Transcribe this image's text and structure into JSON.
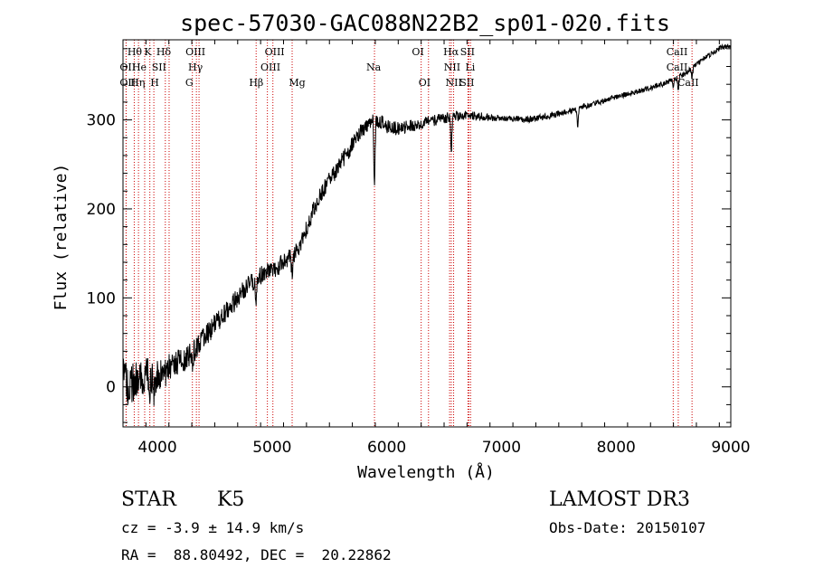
{
  "chart_data": {
    "type": "line",
    "title": "spec-57030-GAC088N22B2_sp01-020.fits",
    "xlabel": "Wavelength (Å)",
    "ylabel": "Flux (relative)",
    "xlim": [
      3700,
      9000
    ],
    "ylim": [
      -45,
      390
    ],
    "x_ticks": [
      4000,
      5000,
      6000,
      7000,
      8000,
      9000
    ],
    "y_ticks": [
      0,
      100,
      200,
      300
    ],
    "grid": false,
    "line_color": "#000000",
    "marker_color": "#cc0000",
    "series": [
      {
        "name": "flux",
        "anchors": [
          [
            3700,
            15
          ],
          [
            3750,
            0
          ],
          [
            3800,
            5
          ],
          [
            3850,
            10
          ],
          [
            3900,
            15
          ],
          [
            3950,
            10
          ],
          [
            4000,
            12
          ],
          [
            4050,
            15
          ],
          [
            4100,
            20
          ],
          [
            4150,
            25
          ],
          [
            4200,
            30
          ],
          [
            4250,
            35
          ],
          [
            4300,
            38
          ],
          [
            4350,
            45
          ],
          [
            4400,
            55
          ],
          [
            4450,
            62
          ],
          [
            4500,
            70
          ],
          [
            4550,
            78
          ],
          [
            4600,
            85
          ],
          [
            4650,
            92
          ],
          [
            4700,
            100
          ],
          [
            4750,
            108
          ],
          [
            4800,
            115
          ],
          [
            4850,
            118
          ],
          [
            4900,
            125
          ],
          [
            4950,
            128
          ],
          [
            5000,
            130
          ],
          [
            5050,
            135
          ],
          [
            5100,
            140
          ],
          [
            5150,
            145
          ],
          [
            5200,
            150
          ],
          [
            5250,
            160
          ],
          [
            5300,
            178
          ],
          [
            5350,
            195
          ],
          [
            5400,
            210
          ],
          [
            5450,
            222
          ],
          [
            5500,
            232
          ],
          [
            5550,
            242
          ],
          [
            5600,
            252
          ],
          [
            5650,
            262
          ],
          [
            5700,
            272
          ],
          [
            5750,
            283
          ],
          [
            5800,
            290
          ],
          [
            5850,
            296
          ],
          [
            5900,
            300
          ],
          [
            5950,
            298
          ],
          [
            6000,
            292
          ],
          [
            6100,
            290
          ],
          [
            6200,
            293
          ],
          [
            6300,
            296
          ],
          [
            6400,
            299
          ],
          [
            6500,
            302
          ],
          [
            6600,
            304
          ],
          [
            6700,
            305
          ],
          [
            6800,
            304
          ],
          [
            7000,
            302
          ],
          [
            7200,
            300
          ],
          [
            7400,
            304
          ],
          [
            7600,
            310
          ],
          [
            7800,
            318
          ],
          [
            8000,
            326
          ],
          [
            8200,
            332
          ],
          [
            8400,
            340
          ],
          [
            8500,
            345
          ],
          [
            8600,
            352
          ],
          [
            8700,
            362
          ],
          [
            8800,
            372
          ],
          [
            8900,
            380
          ],
          [
            9000,
            385
          ]
        ],
        "dips": [
          [
            3933,
            -25
          ],
          [
            3968,
            -25
          ],
          [
            4226,
            -20
          ],
          [
            4305,
            -15
          ],
          [
            4861,
            -20
          ],
          [
            5175,
            -25
          ],
          [
            5893,
            -80
          ],
          [
            6563,
            -40
          ],
          [
            7665,
            -20
          ],
          [
            8498,
            -10
          ],
          [
            8542,
            -15
          ],
          [
            8662,
            -12
          ]
        ],
        "noise_amplitude": [
          [
            3700,
            25
          ],
          [
            4000,
            18
          ],
          [
            4500,
            12
          ],
          [
            5000,
            10
          ],
          [
            5500,
            10
          ],
          [
            6000,
            8
          ],
          [
            7000,
            4
          ],
          [
            8000,
            3
          ],
          [
            9000,
            3
          ]
        ]
      }
    ],
    "lines": [
      {
        "label": "Hθ",
        "wave": 3798,
        "row": 0,
        "x": 3802
      },
      {
        "label": "OII",
        "wave": 3727,
        "row": 1,
        "x": 3741
      },
      {
        "label": "OII",
        "wave": 3727,
        "row": 2,
        "x": 3741
      },
      {
        "label": "Hη",
        "wave": 3835,
        "row": 2,
        "x": 3828
      },
      {
        "label": "K",
        "wave": 3934,
        "row": 0,
        "x": 3917
      },
      {
        "label": "H",
        "wave": 3969,
        "row": 2,
        "x": 3976
      },
      {
        "label": "He",
        "wave": 3889,
        "row": 1,
        "x": 3842
      },
      {
        "label": "SII",
        "wave": 4069,
        "row": 1,
        "x": 4014
      },
      {
        "label": "Hδ",
        "wave": 4102,
        "row": 0,
        "x": 4055
      },
      {
        "label": "OIII",
        "wave": 4363,
        "row": 0,
        "x": 4332
      },
      {
        "label": "Hγ",
        "wave": 4340,
        "row": 1,
        "x": 4332
      },
      {
        "label": "G",
        "wave": 4305,
        "row": 2,
        "x": 4278
      },
      {
        "label": "Hβ",
        "wave": 4861,
        "row": 2,
        "x": 4862
      },
      {
        "label": "OIII",
        "wave": 4959,
        "row": 0,
        "x": 5022
      },
      {
        "label": "OIII",
        "wave": 5007,
        "row": 1,
        "x": 4986
      },
      {
        "label": "Mg",
        "wave": 5175,
        "row": 2,
        "x": 5218
      },
      {
        "label": "Na",
        "wave": 5893,
        "row": 1,
        "x": 5885
      },
      {
        "label": "OI",
        "wave": 6300,
        "row": 0,
        "x": 6272
      },
      {
        "label": "OI",
        "wave": 6364,
        "row": 2,
        "x": 6330
      },
      {
        "label": "Hα",
        "wave": 6563,
        "row": 0,
        "x": 6560
      },
      {
        "label": "NII",
        "wave": 6548,
        "row": 1,
        "x": 6570
      },
      {
        "label": "NII",
        "wave": 6583,
        "row": 2,
        "x": 6584
      },
      {
        "label": "SII",
        "wave": 6716,
        "row": 0,
        "x": 6704
      },
      {
        "label": "Li",
        "wave": 6708,
        "row": 1,
        "x": 6728
      },
      {
        "label": "SII",
        "wave": 6731,
        "row": 2,
        "x": 6700
      },
      {
        "label": "CaII",
        "wave": 8498,
        "row": 0,
        "x": 8531
      },
      {
        "label": "CaII",
        "wave": 8542,
        "row": 1,
        "x": 8531
      },
      {
        "label": "CaII",
        "wave": 8662,
        "row": 2,
        "x": 8628
      }
    ]
  },
  "info": {
    "class": "STAR",
    "subclass": "K5",
    "survey": "LAMOST DR3",
    "cz": "cz = -3.9 ± 14.9 km/s",
    "obs_date": "Obs-Date: 20150107",
    "radec": "RA =  88.80492, DEC =  20.22862"
  }
}
